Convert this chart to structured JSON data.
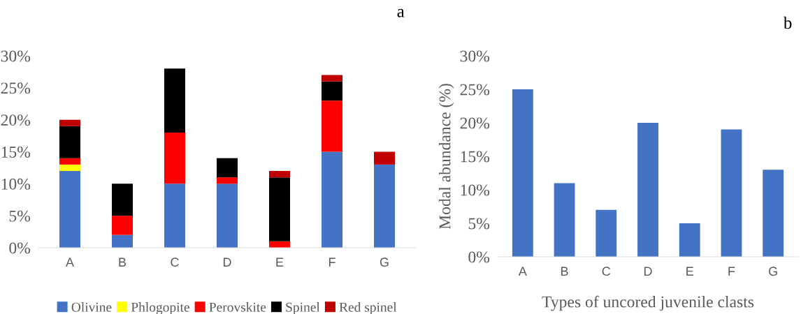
{
  "chart_data": [
    {
      "type": "bar",
      "title": "a",
      "stacked": true,
      "categories": [
        "A",
        "B",
        "C",
        "D",
        "E",
        "F",
        "G"
      ],
      "series": [
        {
          "name": "Olivine",
          "color": "#4472c4",
          "values": [
            12,
            2,
            10,
            10,
            0,
            15,
            13
          ]
        },
        {
          "name": "Phlogopite",
          "color": "#ffff00",
          "values": [
            1,
            0,
            0,
            0,
            0,
            0,
            0
          ]
        },
        {
          "name": "Perovskite",
          "color": "#ff0000",
          "values": [
            1,
            3,
            8,
            1,
            1,
            8,
            0
          ]
        },
        {
          "name": "Spinel",
          "color": "#000000",
          "values": [
            5,
            5,
            10,
            3,
            10,
            3,
            0
          ]
        },
        {
          "name": "Red spinel",
          "color": "#c00000",
          "values": [
            1,
            0,
            0,
            0,
            1,
            1,
            2
          ]
        }
      ],
      "ylim": [
        0,
        30
      ],
      "yticks": [
        {
          "value": 0,
          "label": "0%"
        },
        {
          "value": 5,
          "label": "5%"
        },
        {
          "value": 10,
          "label": "10%"
        },
        {
          "value": 15,
          "label": "15%"
        },
        {
          "value": 20,
          "label": "20%"
        },
        {
          "value": 25,
          "label": "25%"
        },
        {
          "value": 30,
          "label": "30%"
        }
      ],
      "grid": false,
      "legend": "bottom"
    },
    {
      "type": "bar",
      "title": "b",
      "categories": [
        "A",
        "B",
        "C",
        "D",
        "E",
        "F",
        "G"
      ],
      "series": [
        {
          "color": "#4472c4",
          "values": [
            25,
            11,
            7,
            20,
            5,
            19,
            13
          ]
        }
      ],
      "ylabel": "Modal abundance (%)",
      "xlabel": "Types of uncored juvenile clasts",
      "ylim": [
        0,
        30
      ],
      "yticks": [
        {
          "value": 0,
          "label": "0%"
        },
        {
          "value": 5,
          "label": "5%"
        },
        {
          "value": 10,
          "label": "10%"
        },
        {
          "value": 15,
          "label": "15%"
        },
        {
          "value": 20,
          "label": "20%"
        },
        {
          "value": 25,
          "label": "25%"
        },
        {
          "value": 30,
          "label": "30%"
        }
      ],
      "grid": false
    }
  ]
}
